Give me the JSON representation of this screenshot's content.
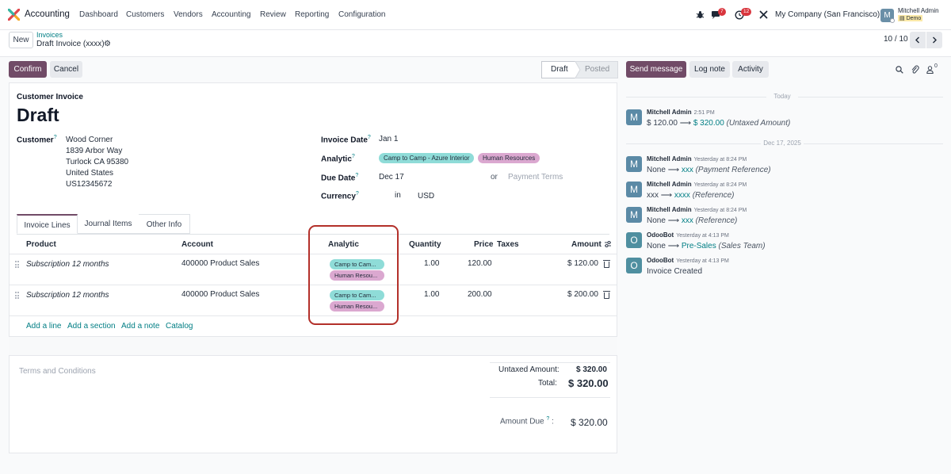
{
  "navbar": {
    "app_name": "Accounting",
    "menu": [
      "Dashboard",
      "Customers",
      "Vendors",
      "Accounting",
      "Review",
      "Reporting",
      "Configuration"
    ],
    "chat_badge": "7",
    "activity_badge": "12",
    "company": "My Company (San Francisco)",
    "user_name": "Mitchell Admin",
    "user_db": "Demo",
    "avatar_letter": "M"
  },
  "control": {
    "new_label": "New",
    "breadcrumb_parent": "Invoices",
    "breadcrumb_current": "Draft Invoice (xxxx)",
    "pager": "10 / 10"
  },
  "actions": {
    "confirm": "Confirm",
    "cancel": "Cancel",
    "status_draft": "Draft",
    "status_posted": "Posted"
  },
  "chatter_buttons": {
    "send_message": "Send message",
    "log_note": "Log note",
    "activity": "Activity",
    "followers_count": "0"
  },
  "form": {
    "type_label": "Customer Invoice",
    "title": "Draft",
    "customer_label": "Customer",
    "customer_lines": [
      "Wood Corner",
      "1839 Arbor Way",
      "Turlock CA 95380",
      "United States",
      "US12345672"
    ],
    "invoice_date_label": "Invoice Date",
    "invoice_date": "Jan 1",
    "analytic_label": "Analytic",
    "analytic_tags": [
      "Camp to Camp - Azure Interior",
      "Human Resources"
    ],
    "due_date_label": "Due Date",
    "due_date": "Dec 17",
    "or_label": "or",
    "payment_terms_placeholder": "Payment Terms",
    "currency_label": "Currency",
    "currency_in": "in",
    "currency": "USD",
    "help_mark": "?"
  },
  "tabs": [
    "Invoice Lines",
    "Journal Items",
    "Other Info"
  ],
  "table": {
    "headers": {
      "product": "Product",
      "account": "Account",
      "analytic": "Analytic",
      "quantity": "Quantity",
      "price": "Price",
      "taxes": "Taxes",
      "amount": "Amount"
    },
    "rows": [
      {
        "product": "Subscription 12 months",
        "account": "400000 Product Sales",
        "tag1": "Camp to Cam...",
        "tag2": "Human Resou...",
        "quantity": "1.00",
        "price": "120.00",
        "amount": "$ 120.00"
      },
      {
        "product": "Subscription 12 months",
        "account": "400000 Product Sales",
        "tag1": "Camp to Cam...",
        "tag2": "Human Resou...",
        "quantity": "1.00",
        "price": "200.00",
        "amount": "$ 200.00"
      }
    ],
    "add_links": [
      "Add a line",
      "Add a section",
      "Add a note",
      "Catalog"
    ]
  },
  "totals": {
    "terms_placeholder": "Terms and Conditions",
    "untaxed_label": "Untaxed Amount:",
    "untaxed_value": "$ 320.00",
    "total_label": "Total:",
    "total_value": "$ 320.00",
    "amount_due_label": "Amount Due",
    "amount_due_value": "$ 320.00"
  },
  "chatter": {
    "today_label": "Today",
    "date_label": "Dec 17, 2025",
    "messages": [
      {
        "author": "Mitchell Admin",
        "time": "2:51 PM",
        "from": "$ 120.00",
        "to": "$ 320.00",
        "field": "(Untaxed Amount)",
        "avatar": "M"
      },
      {
        "author": "Mitchell Admin",
        "time": "Yesterday at 8:24 PM",
        "from": "None",
        "to": "xxx",
        "field": "(Payment Reference)",
        "avatar": "M"
      },
      {
        "author": "Mitchell Admin",
        "time": "Yesterday at 8:24 PM",
        "from": "xxx",
        "to": "xxxx",
        "field": "(Reference)",
        "avatar": "M"
      },
      {
        "author": "Mitchell Admin",
        "time": "Yesterday at 8:24 PM",
        "from": "None",
        "to": "xxx",
        "field": "(Reference)",
        "avatar": "M"
      },
      {
        "author": "OdooBot",
        "time": "Yesterday at 4:13 PM",
        "from": "None",
        "to": "Pre-Sales",
        "field": "(Sales Team)",
        "avatar": "O"
      },
      {
        "author": "OdooBot",
        "time": "Yesterday at 4:13 PM",
        "text": "Invoice Created",
        "avatar": "O"
      }
    ]
  },
  "colors": {
    "brand": "#714b67",
    "link": "#017e84",
    "highlight_box": "#b3302a",
    "avatar_m": "#5b8aa6",
    "avatar_o": "#4f8fa0"
  }
}
